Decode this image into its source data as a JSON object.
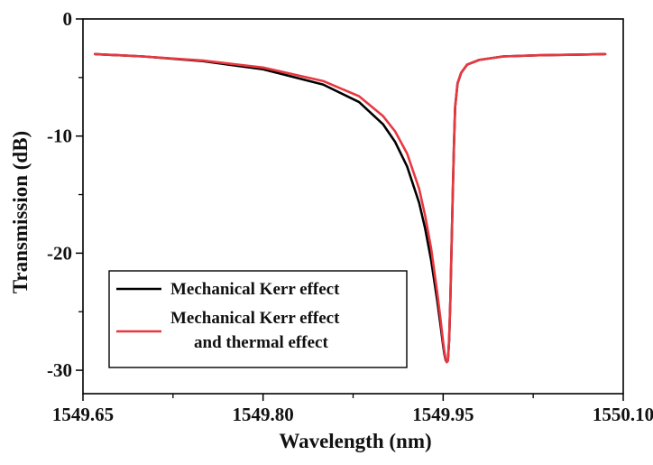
{
  "chart_data": {
    "type": "line",
    "title": "",
    "xlabel": "Wavelength (nm)",
    "ylabel": "Transmission (dB)",
    "xlim": [
      1549.65,
      1550.1
    ],
    "ylim": [
      -32,
      0
    ],
    "x_ticks": [
      1549.65,
      1549.8,
      1549.95,
      1550.1
    ],
    "x_tick_labels": [
      "1549.65",
      "1549.80",
      "1549.95",
      "1550.10"
    ],
    "x_minor_ticks": [
      1549.725,
      1549.875,
      1550.025
    ],
    "y_ticks": [
      0,
      -10,
      -20,
      -30
    ],
    "y_tick_labels": [
      "0",
      "-10",
      "-20",
      "-30"
    ],
    "y_minor_ticks": [
      -5,
      -15,
      -25
    ],
    "grid": false,
    "legend_position": "bottom-left",
    "series": [
      {
        "name": "Mechanical Kerr effect",
        "color": "#000000",
        "x": [
          1549.66,
          1549.7,
          1549.75,
          1549.8,
          1549.85,
          1549.88,
          1549.9,
          1549.91,
          1549.92,
          1549.93,
          1549.935,
          1549.94,
          1549.945,
          1549.948,
          1549.95,
          1549.951,
          1549.952,
          1549.953,
          1549.954,
          1549.955,
          1549.956,
          1549.957,
          1549.958,
          1549.959,
          1549.96,
          1549.962,
          1549.965,
          1549.97,
          1549.98,
          1550.0,
          1550.03,
          1550.06,
          1550.085
        ],
        "y": [
          -3.0,
          -3.2,
          -3.6,
          -4.3,
          -5.6,
          -7.1,
          -9.0,
          -10.5,
          -12.6,
          -15.7,
          -17.9,
          -20.6,
          -24.0,
          -26.3,
          -27.9,
          -28.6,
          -29.1,
          -29.3,
          -29.1,
          -27.4,
          -24.0,
          -19.5,
          -15.0,
          -10.8,
          -7.5,
          -5.5,
          -4.6,
          -3.9,
          -3.5,
          -3.2,
          -3.1,
          -3.05,
          -3.0
        ]
      },
      {
        "name": "Mechanical Kerr effect and thermal effect",
        "color": "#e8373f",
        "x": [
          1549.66,
          1549.7,
          1549.75,
          1549.8,
          1549.85,
          1549.88,
          1549.9,
          1549.91,
          1549.92,
          1549.93,
          1549.935,
          1549.94,
          1549.945,
          1549.948,
          1549.95,
          1549.951,
          1549.952,
          1549.953,
          1549.954,
          1549.955,
          1549.956,
          1549.957,
          1549.958,
          1549.959,
          1549.96,
          1549.962,
          1549.965,
          1549.97,
          1549.98,
          1550.0,
          1550.03,
          1550.06,
          1550.085
        ],
        "y": [
          -3.0,
          -3.2,
          -3.55,
          -4.15,
          -5.3,
          -6.6,
          -8.3,
          -9.6,
          -11.5,
          -14.5,
          -16.8,
          -19.6,
          -23.3,
          -25.8,
          -27.6,
          -28.4,
          -29.0,
          -29.3,
          -29.2,
          -27.4,
          -24.0,
          -19.5,
          -15.0,
          -10.8,
          -7.5,
          -5.5,
          -4.6,
          -3.9,
          -3.5,
          -3.2,
          -3.1,
          -3.05,
          -3.0
        ]
      }
    ],
    "legend": {
      "entries": [
        {
          "lines": [
            "Mechanical Kerr effect"
          ]
        },
        {
          "lines": [
            "Mechanical Kerr effect",
            "and thermal effect"
          ]
        }
      ]
    }
  }
}
